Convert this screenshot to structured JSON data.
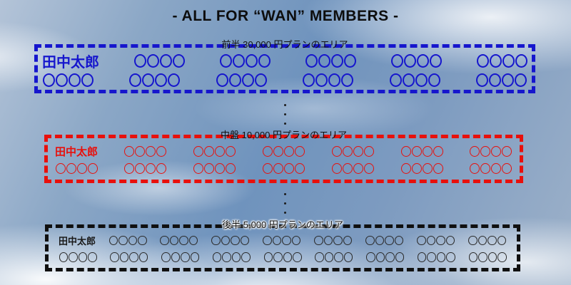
{
  "title": "- ALL FOR “WAN” MEMBERS -",
  "member_name": "田中太郎",
  "placeholder_text": "〇〇〇〇",
  "accent_colors": {
    "front": "#1616cd",
    "middle": "#e8100c",
    "back": "#101010"
  },
  "sections": [
    {
      "id": "front",
      "label": "前半 30,000 円プランのエリア",
      "color": "#1616cd",
      "rows": [
        [
          "田中太郎",
          "〇〇〇〇",
          "〇〇〇〇",
          "〇〇〇〇",
          "〇〇〇〇",
          "〇〇〇〇"
        ],
        [
          "〇〇〇〇",
          "〇〇〇〇",
          "〇〇〇〇",
          "〇〇〇〇",
          "〇〇〇〇",
          "〇〇〇〇"
        ]
      ]
    },
    {
      "id": "middle",
      "label": "中盤 10,000 円プランのエリア",
      "color": "#e8100c",
      "rows": [
        [
          "田中太郎",
          "〇〇〇〇",
          "〇〇〇〇",
          "〇〇〇〇",
          "〇〇〇〇",
          "〇〇〇〇",
          "〇〇〇〇"
        ],
        [
          "〇〇〇〇",
          "〇〇〇〇",
          "〇〇〇〇",
          "〇〇〇〇",
          "〇〇〇〇",
          "〇〇〇〇",
          "〇〇〇〇"
        ]
      ]
    },
    {
      "id": "back",
      "label": "後半 5,000 円プランのエリア",
      "color": "#101010",
      "rows": [
        [
          "田中太郎",
          "〇〇〇〇",
          "〇〇〇〇",
          "〇〇〇〇",
          "〇〇〇〇",
          "〇〇〇〇",
          "〇〇〇〇",
          "〇〇〇〇",
          "〇〇〇〇"
        ],
        [
          "〇〇〇〇",
          "〇〇〇〇",
          "〇〇〇〇",
          "〇〇〇〇",
          "〇〇〇〇",
          "〇〇〇〇",
          "〇〇〇〇",
          "〇〇〇〇",
          "〇〇〇〇"
        ]
      ]
    }
  ],
  "continuation_dots": 3
}
